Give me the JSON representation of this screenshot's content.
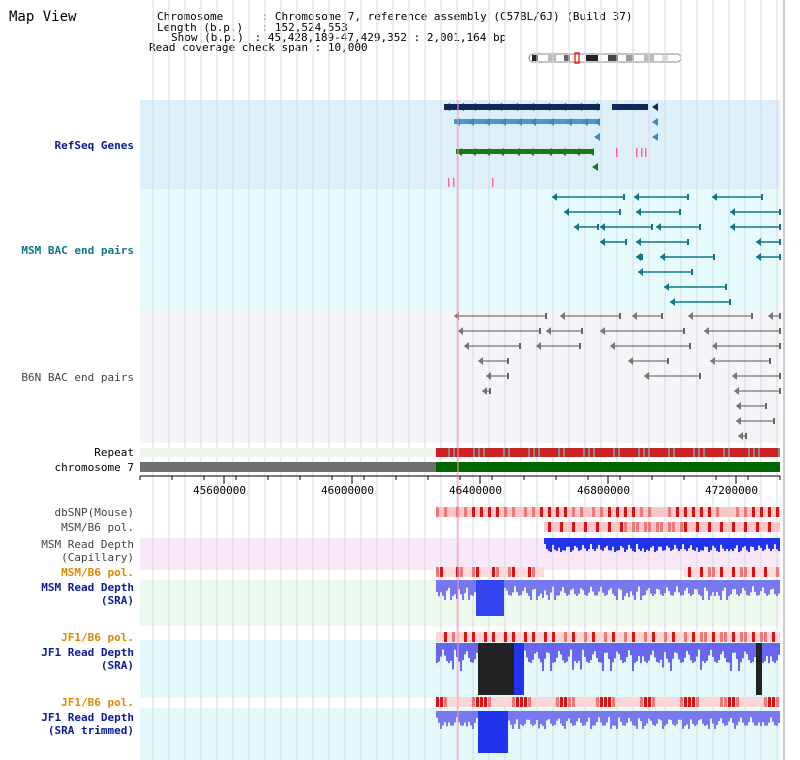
{
  "app": {
    "title": "Map View"
  },
  "info": {
    "chromosome_key": "Chromosome",
    "chromosome_val": "Chromosome 7, reference assembly (C57BL/6J) (Build 37)",
    "length_key": "Length (b.p.)",
    "length_val": "152,524,553",
    "show_key": "Show (b.p.)",
    "show_val": "45,428,189-47,429,352 : 2,001,164 bp",
    "coverage_key": "Read coverage check span",
    "coverage_val": "10,000"
  },
  "tracks": {
    "refseq": "RefSeq Genes",
    "msm_bac": "MSM BAC end pairs",
    "b6n_bac": "B6N BAC end pairs",
    "repeat": "Repeat",
    "chromosome": "chromosome 7",
    "dbsnp": "dbSNP(Mouse)",
    "msm_b6_pol_1": "MSM/B6 pol.",
    "msm_depth_cap_1": "MSM Read Depth",
    "msm_depth_cap_2": "(Capillary)",
    "msm_b6_pol_2": "MSM/B6 pol.",
    "msm_depth_sra_1": "MSM Read Depth",
    "msm_depth_sra_2": "(SRA)",
    "jf1_b6_pol_1": "JF1/B6 pol.",
    "jf1_depth_sra_1": "JF1 Read Depth",
    "jf1_depth_sra_2": "(SRA)",
    "jf1_b6_pol_2": "JF1/B6 pol.",
    "jf1_depth_trim_1": "JF1 Read Depth",
    "jf1_depth_trim_2": "(SRA trimmed)"
  },
  "axis": {
    "ticks": [
      "45600000",
      "46000000",
      "46400000",
      "46800000",
      "47200000"
    ],
    "tick_values": [
      45600000,
      46000000,
      46400000,
      46800000,
      47200000
    ],
    "range": [
      45428189,
      47429352
    ]
  },
  "colors": {
    "refseq_bg": "#ddf0fa",
    "bac_bg": "#e8fbfb",
    "b6n_bg": "#f4f4f8",
    "chrom_grey": "#707070",
    "chrom_green": "#006600",
    "repeat_red": "#dd2222",
    "depth_blue": "#2233ee",
    "depth_light": "#7777ee"
  }
}
